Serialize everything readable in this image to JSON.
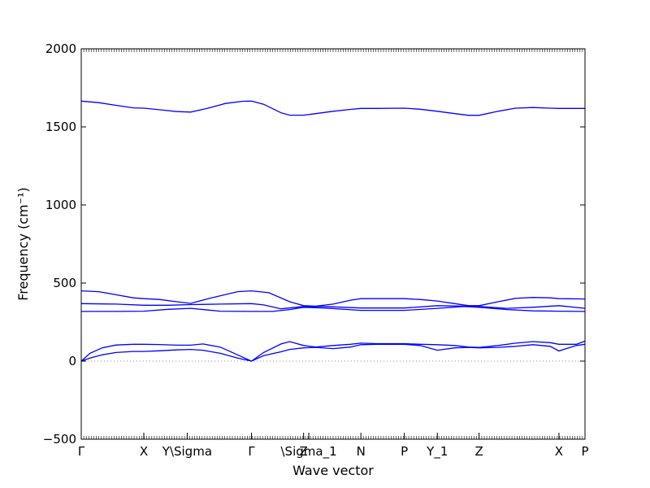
{
  "chart_data": {
    "type": "line",
    "title": "",
    "xlabel": "Wave vector",
    "ylabel": "Frequency (cm⁻¹)",
    "ylim": [
      -500,
      2000
    ],
    "yticks": [
      -500,
      0,
      500,
      1000,
      1500,
      2000
    ],
    "grid": false,
    "legend": "none",
    "color": "#0000ff",
    "zero_line_color": "#888888",
    "x_range": [
      0,
      2.9
    ],
    "high_symmetry_points": [
      {
        "label": "Γ",
        "x": 0.0
      },
      {
        "label": "X",
        "x": 0.36
      },
      {
        "label": "Y\\Sigma",
        "x": 0.61
      },
      {
        "label": "Γ",
        "x": 0.98
      },
      {
        "label": "Z",
        "x": 1.28
      },
      {
        "label": "\\Sigma_1",
        "x": 1.31
      },
      {
        "label": "N",
        "x": 1.61
      },
      {
        "label": "P",
        "x": 1.86
      },
      {
        "label": "Y_1",
        "x": 2.05
      },
      {
        "label": "Z",
        "x": 2.29
      },
      {
        "label": "X",
        "x": 2.75
      },
      {
        "label": "P",
        "x": 2.9
      }
    ],
    "series": [
      {
        "x": [
          0,
          0.1,
          0.2,
          0.3,
          0.36,
          0.45,
          0.55,
          0.63,
          0.73,
          0.83,
          0.93,
          0.98,
          1.05,
          1.15,
          1.2,
          1.28,
          1.35,
          1.45,
          1.55,
          1.61,
          1.7,
          1.86,
          1.95,
          2.05,
          2.15,
          2.23,
          2.29,
          2.4,
          2.5,
          2.6,
          2.7,
          2.75,
          2.9
        ],
        "y": [
          1665,
          1655,
          1638,
          1622,
          1620,
          1610,
          1598,
          1595,
          1620,
          1650,
          1664,
          1665,
          1645,
          1590,
          1575,
          1575,
          1585,
          1600,
          1612,
          1618,
          1618,
          1620,
          1613,
          1600,
          1585,
          1574,
          1574,
          1600,
          1620,
          1624,
          1620,
          1618,
          1618
        ]
      },
      {
        "x": [
          0,
          0.1,
          0.2,
          0.3,
          0.36,
          0.45,
          0.55,
          0.63,
          0.75,
          0.9,
          0.98,
          1.08,
          1.2,
          1.28,
          1.35,
          1.45,
          1.55,
          1.61,
          1.7,
          1.86,
          1.95,
          2.05,
          2.15,
          2.23,
          2.29,
          2.4,
          2.5,
          2.6,
          2.7,
          2.75,
          2.9
        ],
        "y": [
          450,
          445,
          425,
          405,
          400,
          395,
          380,
          370,
          405,
          445,
          450,
          438,
          380,
          355,
          352,
          365,
          390,
          400,
          400,
          400,
          395,
          385,
          368,
          355,
          355,
          380,
          402,
          408,
          405,
          400,
          398
        ]
      },
      {
        "x": [
          0,
          0.2,
          0.36,
          0.5,
          0.63,
          0.8,
          0.98,
          1.05,
          1.15,
          1.28,
          1.4,
          1.61,
          1.86,
          2.05,
          2.2,
          2.29,
          2.45,
          2.6,
          2.75,
          2.9
        ],
        "y": [
          368,
          365,
          358,
          358,
          362,
          365,
          368,
          360,
          335,
          350,
          350,
          340,
          340,
          355,
          352,
          350,
          338,
          345,
          355,
          338
        ]
      },
      {
        "x": [
          0,
          0.2,
          0.36,
          0.5,
          0.63,
          0.8,
          0.98,
          1.1,
          1.2,
          1.28,
          1.4,
          1.61,
          1.86,
          2.05,
          2.2,
          2.29,
          2.45,
          2.6,
          2.75,
          2.9
        ],
        "y": [
          318,
          318,
          320,
          332,
          338,
          320,
          318,
          318,
          330,
          345,
          340,
          325,
          325,
          338,
          350,
          345,
          330,
          322,
          320,
          318
        ]
      },
      {
        "x": [
          0,
          0.05,
          0.12,
          0.2,
          0.3,
          0.36,
          0.45,
          0.55,
          0.63,
          0.7,
          0.8,
          0.9,
          0.98,
          1.05,
          1.15,
          1.2,
          1.28,
          1.35,
          1.45,
          1.55,
          1.61,
          1.7,
          1.86,
          1.95,
          2.05,
          2.15,
          2.23,
          2.29,
          2.4,
          2.5,
          2.6,
          2.7,
          2.75,
          2.85,
          2.9
        ],
        "y": [
          0,
          50,
          85,
          103,
          108,
          108,
          106,
          102,
          102,
          110,
          90,
          40,
          0,
          55,
          110,
          125,
          100,
          90,
          100,
          108,
          115,
          112,
          112,
          108,
          105,
          100,
          90,
          88,
          100,
          115,
          125,
          118,
          108,
          108,
          128
        ]
      },
      {
        "x": [
          0,
          0.05,
          0.12,
          0.2,
          0.3,
          0.36,
          0.45,
          0.55,
          0.63,
          0.7,
          0.8,
          0.9,
          0.98,
          1.05,
          1.15,
          1.2,
          1.28,
          1.35,
          1.45,
          1.55,
          1.61,
          1.7,
          1.86,
          1.95,
          2.05,
          2.15,
          2.23,
          2.29,
          2.4,
          2.5,
          2.6,
          2.7,
          2.75,
          2.85,
          2.9
        ],
        "y": [
          0,
          20,
          40,
          55,
          62,
          62,
          66,
          72,
          75,
          70,
          50,
          20,
          0,
          35,
          60,
          75,
          85,
          88,
          80,
          90,
          105,
          108,
          108,
          100,
          70,
          85,
          88,
          85,
          88,
          95,
          105,
          95,
          65,
          100,
          108
        ]
      }
    ]
  }
}
